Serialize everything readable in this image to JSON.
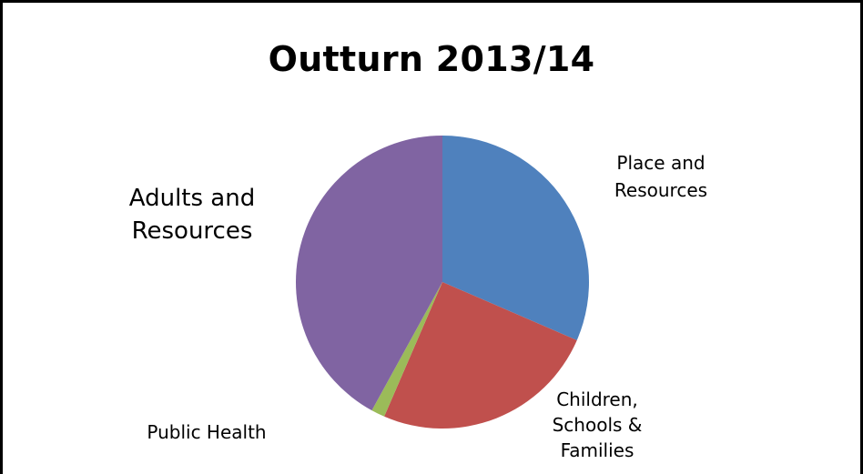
{
  "chart_data": {
    "type": "pie",
    "title": "Outturn 2013/14",
    "start_angle_deg": 0,
    "direction": "clockwise",
    "slices": [
      {
        "label": "Place and Resources",
        "label_lines": [
          "Place and",
          "Resources"
        ],
        "value": 31.5,
        "color": "#4F81BD"
      },
      {
        "label": "Children, Schools & Families",
        "label_lines": [
          "Children,",
          "Schools &",
          "Families"
        ],
        "value": 25.0,
        "color": "#C0504D"
      },
      {
        "label": "Public Health",
        "label_lines": [
          "Public Health"
        ],
        "value": 1.5,
        "color": "#9BBB59"
      },
      {
        "label": "Adults and Resources",
        "label_lines": [
          "Adults and",
          "Resources"
        ],
        "value": 42.0,
        "color": "#8064A2"
      }
    ]
  }
}
